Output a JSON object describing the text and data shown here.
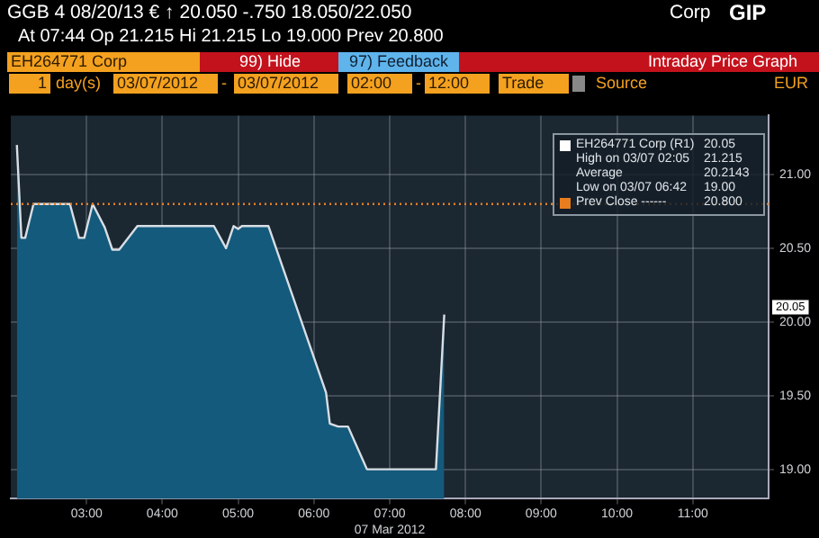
{
  "chart_data": {
    "type": "area",
    "title": "Intraday Price Graph",
    "xlabel": "07 Mar 2012",
    "x": [
      2.08,
      2.14,
      2.19,
      2.3,
      2.78,
      2.9,
      2.97,
      3.08,
      3.24,
      3.34,
      3.43,
      3.67,
      4.68,
      4.84,
      4.94,
      5.0,
      5.05,
      5.4,
      6.16,
      6.21,
      6.32,
      6.45,
      6.7,
      7.61,
      7.72
    ],
    "series": [
      {
        "name": "EH264771 Corp (R1)",
        "color": "#145a7c",
        "values": [
          21.2,
          20.57,
          20.57,
          20.8,
          20.8,
          20.57,
          20.57,
          20.8,
          20.64,
          20.49,
          20.49,
          20.65,
          20.65,
          20.5,
          20.65,
          20.63,
          20.65,
          20.65,
          19.52,
          19.31,
          19.29,
          19.29,
          19.0,
          19.0,
          20.05
        ]
      }
    ],
    "xlim": [
      2,
      12
    ],
    "xticks": [
      {
        "value": 3,
        "label": "03:00"
      },
      {
        "value": 4,
        "label": "04:00"
      },
      {
        "value": 5,
        "label": "05:00"
      },
      {
        "value": 6,
        "label": "06:00"
      },
      {
        "value": 7,
        "label": "07:00"
      },
      {
        "value": 8,
        "label": "08:00"
      },
      {
        "value": 9,
        "label": "09:00"
      },
      {
        "value": 10,
        "label": "10:00"
      },
      {
        "value": 11,
        "label": "11:00"
      }
    ],
    "ylim": [
      18.8,
      21.4
    ],
    "yticks": [
      {
        "value": 19,
        "label": "19.00"
      },
      {
        "value": 19.5,
        "label": "19.50"
      },
      {
        "value": 20,
        "label": "20.00"
      },
      {
        "value": 20.5,
        "label": "20.50"
      },
      {
        "value": 21,
        "label": "21.00"
      }
    ],
    "ref_lines": [
      {
        "axis": "y",
        "value": 20.8,
        "label": "Prev Close ------",
        "color": "#e87d1e",
        "line_style": "dotted"
      }
    ],
    "grid": true,
    "legend": "top right",
    "marker": "none",
    "annotations": [
      "GGB 4 08/20/13 € ↑ 20.050 -.750 18.050/22.050",
      "Corp",
      "GIP",
      "At 07:44 Op 21.215 Hi 21.215 Lo 19.000 Prev 20.800",
      "EH264771 Corp",
      "99) Hide",
      "97) Feedback",
      "1",
      "day(s)",
      "03/07/2012",
      "-",
      "03/07/2012",
      "02:00",
      "-",
      "12:00",
      "Trade",
      "Source",
      "EUR",
      "20.05",
      "High on 03/07 02:05",
      "21.215",
      "Average",
      "20.2143",
      "Low on 03/07 06:42",
      "19.00",
      "20.800",
      "20.05"
    ]
  }
}
